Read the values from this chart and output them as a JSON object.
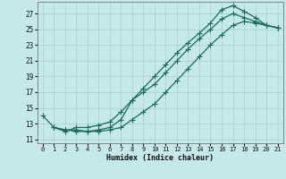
{
  "xlabel": "Humidex (Indice chaleur)",
  "xlim": [
    -0.5,
    21.5
  ],
  "ylim": [
    10.5,
    28.5
  ],
  "xticks": [
    0,
    1,
    2,
    3,
    4,
    5,
    6,
    7,
    8,
    9,
    10,
    11,
    12,
    13,
    14,
    15,
    16,
    17,
    18,
    19,
    20,
    21
  ],
  "yticks": [
    11,
    13,
    15,
    17,
    19,
    21,
    23,
    25,
    27
  ],
  "background_color": "#c5e8e8",
  "line_color": "#1a6b5a",
  "grid_color": "#aacece",
  "line1_x": [
    0,
    1,
    2,
    3,
    4,
    5,
    6,
    7,
    8,
    9,
    10,
    11,
    12,
    13,
    14,
    15,
    16,
    17,
    18,
    19,
    20,
    21
  ],
  "line1_y": [
    14.0,
    12.5,
    12.2,
    12.0,
    12.0,
    12.2,
    12.5,
    13.5,
    16.0,
    17.5,
    19.0,
    20.5,
    22.0,
    23.3,
    24.5,
    25.8,
    27.5,
    28.0,
    27.3,
    26.5,
    25.5,
    25.2
  ],
  "line2_x": [
    1,
    2,
    3,
    4,
    5,
    6,
    7,
    8,
    9,
    10,
    11,
    12,
    13,
    14,
    15,
    16,
    17,
    18,
    19,
    20,
    21
  ],
  "line2_y": [
    12.5,
    12.0,
    12.5,
    12.5,
    12.8,
    13.2,
    14.5,
    16.0,
    17.0,
    18.0,
    19.5,
    21.0,
    22.5,
    23.8,
    25.0,
    26.3,
    27.0,
    26.5,
    26.0,
    25.5,
    25.2
  ],
  "line3_x": [
    1,
    2,
    3,
    4,
    5,
    6,
    7,
    8,
    9,
    10,
    11,
    12,
    13,
    14,
    15,
    16,
    17,
    18,
    19,
    20,
    21
  ],
  "line3_y": [
    12.5,
    12.2,
    12.2,
    12.0,
    12.0,
    12.2,
    12.5,
    13.5,
    14.5,
    15.5,
    17.0,
    18.5,
    20.0,
    21.5,
    23.0,
    24.3,
    25.5,
    26.0,
    25.8,
    25.5,
    25.2
  ]
}
